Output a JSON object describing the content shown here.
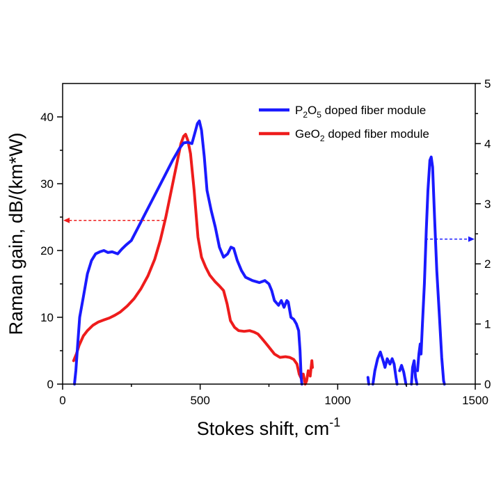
{
  "chart_data": {
    "type": "line",
    "xlabel_main": "Stokes shift, cm",
    "xlabel_sup": "-1",
    "ylabel": "Raman gain, dB/(km*W)",
    "xlim": [
      0,
      1500
    ],
    "ylim_left": [
      0,
      45
    ],
    "ylim_right": [
      0,
      5
    ],
    "x_ticks": [
      "0",
      "500",
      "1000",
      "1500"
    ],
    "y_ticks_left": [
      "0",
      "10",
      "20",
      "30",
      "40"
    ],
    "y_ticks_right": [
      "0",
      "1",
      "2",
      "3",
      "4",
      "5"
    ],
    "legend": [
      {
        "name": "P2O5 doped fiber module",
        "parts": [
          "P",
          "2",
          "O",
          "5",
          " doped fiber module"
        ],
        "color": "#1a1aff"
      },
      {
        "name": "GeO2 doped fiber module",
        "parts": [
          "GeO",
          "2",
          " doped fiber module"
        ],
        "color": "#ee1c1c"
      }
    ],
    "series": [
      {
        "name": "P2O5 doped fiber module",
        "color": "#1a1aff",
        "axis": "left",
        "segments": [
          [
            [
              43,
              0
            ],
            [
              48,
              2
            ],
            [
              55,
              6
            ],
            [
              62,
              10
            ],
            [
              75,
              13
            ],
            [
              90,
              16.5
            ],
            [
              105,
              18.5
            ],
            [
              120,
              19.5
            ],
            [
              135,
              19.8
            ],
            [
              150,
              20
            ],
            [
              165,
              19.7
            ],
            [
              180,
              19.8
            ],
            [
              200,
              19.5
            ],
            [
              215,
              20.2
            ],
            [
              230,
              20.8
            ],
            [
              250,
              21.5
            ],
            [
              275,
              23.5
            ],
            [
              300,
              25.5
            ],
            [
              325,
              27.5
            ],
            [
              350,
              29.5
            ],
            [
              375,
              31.5
            ],
            [
              400,
              33.5
            ],
            [
              425,
              35.3
            ],
            [
              440,
              36.1
            ],
            [
              455,
              36.2
            ],
            [
              470,
              36
            ],
            [
              480,
              37.5
            ],
            [
              490,
              39
            ],
            [
              497,
              39.4
            ],
            [
              505,
              38
            ],
            [
              515,
              34
            ],
            [
              525,
              29
            ],
            [
              540,
              26
            ],
            [
              555,
              23.5
            ],
            [
              570,
              20.5
            ],
            [
              585,
              19
            ],
            [
              600,
              19.5
            ],
            [
              612,
              20.5
            ],
            [
              622,
              20.3
            ],
            [
              635,
              18.5
            ],
            [
              650,
              17
            ],
            [
              665,
              16
            ],
            [
              690,
              15.5
            ],
            [
              715,
              15.2
            ],
            [
              735,
              15.5
            ],
            [
              750,
              15
            ],
            [
              760,
              14
            ],
            [
              770,
              12.5
            ],
            [
              785,
              11.8
            ],
            [
              795,
              12.5
            ],
            [
              805,
              11.5
            ],
            [
              815,
              12.5
            ],
            [
              820,
              12.3
            ],
            [
              830,
              10
            ],
            [
              840,
              9.7
            ],
            [
              850,
              9
            ],
            [
              858,
              8
            ],
            [
              863,
              5
            ],
            [
              867,
              1
            ],
            [
              870,
              0
            ]
          ],
          [
            [
              1110,
              1
            ],
            [
              1113,
              0
            ]
          ],
          [
            [
              1128,
              0
            ],
            [
              1135,
              2
            ],
            [
              1145,
              3.8
            ],
            [
              1155,
              4.8
            ],
            [
              1165,
              3.5
            ],
            [
              1172,
              2.5
            ],
            [
              1180,
              3.8
            ],
            [
              1190,
              3
            ],
            [
              1198,
              3.8
            ],
            [
              1205,
              3
            ],
            [
              1212,
              1
            ],
            [
              1216,
              0
            ]
          ],
          [
            [
              1225,
              2
            ],
            [
              1232,
              2.8
            ],
            [
              1240,
              1.8
            ],
            [
              1248,
              0
            ]
          ],
          [
            [
              1268,
              0
            ],
            [
              1272,
              2.5
            ],
            [
              1278,
              3.5
            ],
            [
              1283,
              1
            ],
            [
              1288,
              0
            ]
          ],
          [
            [
              1290,
              2
            ],
            [
              1295,
              4.5
            ],
            [
              1300,
              6
            ],
            [
              1303,
              4.5
            ],
            [
              1308,
              9
            ],
            [
              1315,
              15
            ],
            [
              1322,
              23
            ],
            [
              1328,
              29
            ],
            [
              1335,
              33.5
            ],
            [
              1340,
              34
            ],
            [
              1345,
              32.5
            ],
            [
              1352,
              25
            ],
            [
              1360,
              17
            ],
            [
              1370,
              10
            ],
            [
              1378,
              4
            ],
            [
              1385,
              0.5
            ],
            [
              1388,
              0
            ]
          ]
        ]
      },
      {
        "name": "GeO2 doped fiber module",
        "color": "#ee1c1c",
        "axis": "left",
        "segments": [
          [
            [
              40,
              3.5
            ],
            [
              50,
              4.5
            ],
            [
              60,
              5.8
            ],
            [
              75,
              7.2
            ],
            [
              90,
              8
            ],
            [
              110,
              8.8
            ],
            [
              130,
              9.3
            ],
            [
              150,
              9.6
            ],
            [
              170,
              9.9
            ],
            [
              190,
              10.3
            ],
            [
              210,
              10.8
            ],
            [
              235,
              11.7
            ],
            [
              260,
              12.8
            ],
            [
              285,
              14.3
            ],
            [
              310,
              16.2
            ],
            [
              335,
              18.7
            ],
            [
              355,
              21.5
            ],
            [
              375,
              25
            ],
            [
              395,
              29
            ],
            [
              415,
              33
            ],
            [
              430,
              36
            ],
            [
              440,
              37.1
            ],
            [
              447,
              37.4
            ],
            [
              455,
              36.5
            ],
            [
              465,
              34.5
            ],
            [
              478,
              29
            ],
            [
              492,
              22
            ],
            [
              505,
              19
            ],
            [
              520,
              17.5
            ],
            [
              535,
              16.3
            ],
            [
              555,
              15.3
            ],
            [
              570,
              14.7
            ],
            [
              585,
              14
            ],
            [
              598,
              12
            ],
            [
              610,
              9.5
            ],
            [
              625,
              8.5
            ],
            [
              640,
              8
            ],
            [
              660,
              7.9
            ],
            [
              680,
              8
            ],
            [
              695,
              7.8
            ],
            [
              710,
              7.5
            ],
            [
              725,
              6.8
            ],
            [
              745,
              5.8
            ],
            [
              770,
              4.5
            ],
            [
              790,
              4
            ],
            [
              810,
              4.1
            ],
            [
              825,
              4
            ],
            [
              840,
              3.7
            ],
            [
              852,
              3
            ],
            [
              860,
              1.5
            ],
            [
              868,
              0.8
            ],
            [
              875,
              1.5
            ],
            [
              882,
              0
            ],
            [
              887,
              0.5
            ],
            [
              893,
              2
            ],
            [
              900,
              1.2
            ],
            [
              906,
              3.5
            ],
            [
              908,
              2.5
            ]
          ]
        ]
      }
    ],
    "annotations": [
      {
        "name": "left-axis-arrow",
        "color": "#ee1c1c",
        "from": [
          370,
          24.5
        ],
        "to": [
          0,
          24.5
        ],
        "axis": "left"
      },
      {
        "name": "right-axis-arrow",
        "color": "#1a1aff",
        "from": [
          1318,
          21.7
        ],
        "to": [
          1500,
          21.7
        ],
        "axis": "left"
      }
    ]
  }
}
